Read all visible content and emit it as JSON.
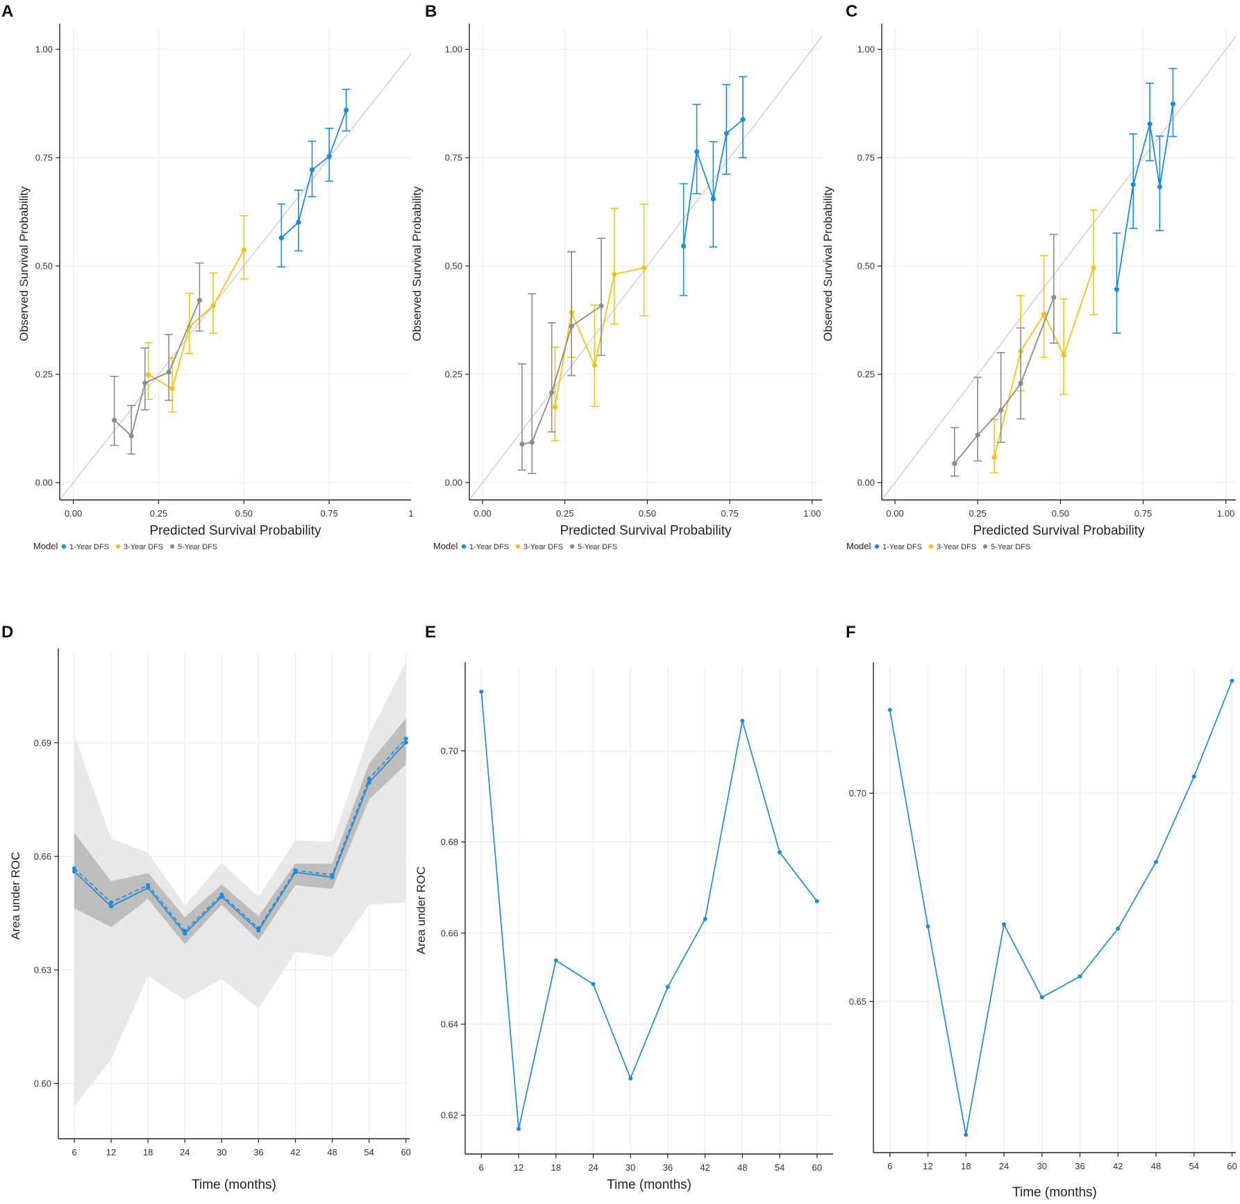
{
  "figure": {
    "colors": {
      "blue": "#1f8ad6",
      "yellow": "#f2c21b",
      "gray": "#8c8c8c",
      "grid": "#ececec",
      "diagonal": "#d2d2d2",
      "axis": "#222222",
      "band_outer": "#e8e8e8",
      "band_inner": "#bdbdbd"
    }
  },
  "chart_data": [
    {
      "panel": "A",
      "type": "scatter",
      "xlabel": "Predicted Survival Probability",
      "ylabel": "Observed Survival Probability",
      "xlim": [
        -0.04,
        0.99
      ],
      "ylim": [
        -0.04,
        1.05
      ],
      "xticks": [
        "0.00",
        "0.25",
        "0.50",
        "0.75"
      ],
      "xtick_values": [
        0,
        0.25,
        0.5,
        0.75
      ],
      "extra_xtick": {
        "value": 0.99,
        "label": "1"
      },
      "yticks": [
        "0.00",
        "0.25",
        "0.50",
        "0.75",
        "1.00"
      ],
      "ytick_values": [
        0,
        0.25,
        0.5,
        0.75,
        1.0
      ],
      "legend": {
        "title": "Model",
        "entries": [
          "1-Year DFS",
          "3-Year DFS",
          "5-Year DFS"
        ]
      },
      "series": [
        {
          "name": "1-Year DFS",
          "color_key": "blue",
          "points": [
            {
              "x": 0.61,
              "y": 0.565,
              "lo": 0.498,
              "hi": 0.643
            },
            {
              "x": 0.66,
              "y": 0.601,
              "lo": 0.535,
              "hi": 0.675
            },
            {
              "x": 0.7,
              "y": 0.722,
              "lo": 0.66,
              "hi": 0.788
            },
            {
              "x": 0.75,
              "y": 0.753,
              "lo": 0.696,
              "hi": 0.818
            },
            {
              "x": 0.8,
              "y": 0.86,
              "lo": 0.812,
              "hi": 0.908
            }
          ]
        },
        {
          "name": "3-Year DFS",
          "color_key": "yellow",
          "points": [
            {
              "x": 0.22,
              "y": 0.249,
              "lo": 0.192,
              "hi": 0.323
            },
            {
              "x": 0.29,
              "y": 0.217,
              "lo": 0.163,
              "hi": 0.288
            },
            {
              "x": 0.34,
              "y": 0.36,
              "lo": 0.298,
              "hi": 0.437
            },
            {
              "x": 0.41,
              "y": 0.408,
              "lo": 0.345,
              "hi": 0.484
            },
            {
              "x": 0.5,
              "y": 0.537,
              "lo": 0.47,
              "hi": 0.616
            }
          ]
        },
        {
          "name": "5-Year DFS",
          "color_key": "gray",
          "points": [
            {
              "x": 0.12,
              "y": 0.144,
              "lo": 0.086,
              "hi": 0.245
            },
            {
              "x": 0.17,
              "y": 0.108,
              "lo": 0.066,
              "hi": 0.178
            },
            {
              "x": 0.21,
              "y": 0.23,
              "lo": 0.168,
              "hi": 0.311
            },
            {
              "x": 0.28,
              "y": 0.255,
              "lo": 0.19,
              "hi": 0.342
            },
            {
              "x": 0.37,
              "y": 0.421,
              "lo": 0.35,
              "hi": 0.507
            }
          ]
        }
      ]
    },
    {
      "panel": "B",
      "type": "scatter",
      "xlabel": "Predicted Survival Probability",
      "ylabel": "Observed Survival Probability",
      "xlim": [
        -0.04,
        1.03
      ],
      "ylim": [
        -0.04,
        1.05
      ],
      "xticks": [
        "0.00",
        "0.25",
        "0.50",
        "0.75",
        "1.00"
      ],
      "xtick_values": [
        0,
        0.25,
        0.5,
        0.75,
        1.0
      ],
      "yticks": [
        "0.00",
        "0.25",
        "0.50",
        "0.75",
        "1.00"
      ],
      "ytick_values": [
        0,
        0.25,
        0.5,
        0.75,
        1.0
      ],
      "legend": {
        "title": "Model",
        "entries": [
          "1-Year DFS",
          "3-Year DFS",
          "5-Year DFS"
        ]
      },
      "series": [
        {
          "name": "1-Year DFS",
          "color_key": "blue",
          "points": [
            {
              "x": 0.61,
              "y": 0.546,
              "lo": 0.432,
              "hi": 0.69
            },
            {
              "x": 0.65,
              "y": 0.764,
              "lo": 0.667,
              "hi": 0.873
            },
            {
              "x": 0.7,
              "y": 0.655,
              "lo": 0.544,
              "hi": 0.787
            },
            {
              "x": 0.74,
              "y": 0.806,
              "lo": 0.712,
              "hi": 0.919
            },
            {
              "x": 0.79,
              "y": 0.838,
              "lo": 0.75,
              "hi": 0.937
            }
          ]
        },
        {
          "name": "3-Year DFS",
          "color_key": "yellow",
          "points": [
            {
              "x": 0.22,
              "y": 0.174,
              "lo": 0.097,
              "hi": 0.313
            },
            {
              "x": 0.27,
              "y": 0.393,
              "lo": 0.289,
              "hi": 0.533
            },
            {
              "x": 0.34,
              "y": 0.271,
              "lo": 0.176,
              "hi": 0.41
            },
            {
              "x": 0.4,
              "y": 0.481,
              "lo": 0.366,
              "hi": 0.633
            },
            {
              "x": 0.49,
              "y": 0.496,
              "lo": 0.385,
              "hi": 0.643
            }
          ]
        },
        {
          "name": "5-Year DFS",
          "color_key": "gray",
          "points": [
            {
              "x": 0.12,
              "y": 0.089,
              "lo": 0.029,
              "hi": 0.274
            },
            {
              "x": 0.15,
              "y": 0.093,
              "lo": 0.021,
              "hi": 0.436
            },
            {
              "x": 0.21,
              "y": 0.208,
              "lo": 0.117,
              "hi": 0.369
            },
            {
              "x": 0.27,
              "y": 0.361,
              "lo": 0.247,
              "hi": 0.533
            },
            {
              "x": 0.36,
              "y": 0.408,
              "lo": 0.294,
              "hi": 0.564
            }
          ]
        }
      ]
    },
    {
      "panel": "C",
      "type": "scatter",
      "xlabel": "Predicted Survival Probability",
      "ylabel": "Observed Survival Probability",
      "xlim": [
        -0.04,
        1.03
      ],
      "ylim": [
        -0.04,
        1.05
      ],
      "xticks": [
        "0.00",
        "0.25",
        "0.50",
        "0.75",
        "1.00"
      ],
      "xtick_values": [
        0,
        0.25,
        0.5,
        0.75,
        1.0
      ],
      "yticks": [
        "0.00",
        "0.25",
        "0.50",
        "0.75",
        "1.00"
      ],
      "ytick_values": [
        0,
        0.25,
        0.5,
        0.75,
        1.0
      ],
      "legend": {
        "title": "Model",
        "entries": [
          "1-Year DFS",
          "3-Year DFS",
          "5-Year DFS"
        ]
      },
      "series": [
        {
          "name": "1-Year DFS",
          "color_key": "blue",
          "points": [
            {
              "x": 0.67,
              "y": 0.446,
              "lo": 0.345,
              "hi": 0.576
            },
            {
              "x": 0.72,
              "y": 0.688,
              "lo": 0.587,
              "hi": 0.805
            },
            {
              "x": 0.77,
              "y": 0.828,
              "lo": 0.743,
              "hi": 0.922
            },
            {
              "x": 0.8,
              "y": 0.683,
              "lo": 0.582,
              "hi": 0.8
            },
            {
              "x": 0.84,
              "y": 0.874,
              "lo": 0.799,
              "hi": 0.956
            }
          ]
        },
        {
          "name": "3-Year DFS",
          "color_key": "yellow",
          "points": [
            {
              "x": 0.3,
              "y": 0.058,
              "lo": 0.023,
              "hi": 0.146
            },
            {
              "x": 0.38,
              "y": 0.303,
              "lo": 0.212,
              "hi": 0.432
            },
            {
              "x": 0.45,
              "y": 0.389,
              "lo": 0.289,
              "hi": 0.524
            },
            {
              "x": 0.51,
              "y": 0.294,
              "lo": 0.204,
              "hi": 0.424
            },
            {
              "x": 0.6,
              "y": 0.496,
              "lo": 0.388,
              "hi": 0.629
            }
          ]
        },
        {
          "name": "5-Year DFS",
          "color_key": "gray",
          "points": [
            {
              "x": 0.18,
              "y": 0.044,
              "lo": 0.015,
              "hi": 0.127
            },
            {
              "x": 0.25,
              "y": 0.11,
              "lo": 0.05,
              "hi": 0.243
            },
            {
              "x": 0.32,
              "y": 0.167,
              "lo": 0.093,
              "hi": 0.3
            },
            {
              "x": 0.38,
              "y": 0.229,
              "lo": 0.147,
              "hi": 0.357
            },
            {
              "x": 0.48,
              "y": 0.428,
              "lo": 0.322,
              "hi": 0.573
            }
          ]
        }
      ]
    },
    {
      "panel": "D",
      "type": "line",
      "xlabel": "Time (months)",
      "ylabel": "Area under ROC",
      "x": [
        6,
        12,
        18,
        24,
        30,
        36,
        42,
        48,
        54,
        60
      ],
      "xlim": [
        3.4,
        60.6
      ],
      "ylim": [
        0.5854,
        0.7138
      ],
      "xticks": [
        "6",
        "12",
        "18",
        "24",
        "30",
        "36",
        "42",
        "48",
        "54",
        "60"
      ],
      "yticks": [
        "0.60",
        "0.63",
        "0.66",
        "0.69"
      ],
      "ytick_values": [
        0.6,
        0.63,
        0.66,
        0.69
      ],
      "series": [
        {
          "name": "AUC",
          "style": "solid",
          "values": [
            0.656,
            0.6468,
            0.6517,
            0.6396,
            0.6493,
            0.6404,
            0.6558,
            0.6545,
            0.6795,
            0.6901
          ]
        },
        {
          "name": "AUC (dashed)",
          "style": "dashed",
          "values": [
            0.6568,
            0.6478,
            0.6524,
            0.6403,
            0.6499,
            0.641,
            0.6563,
            0.6551,
            0.6805,
            0.6911
          ]
        },
        {
          "name": "Inner band",
          "style": "band",
          "lower": [
            0.6463,
            0.6413,
            0.6487,
            0.6368,
            0.6472,
            0.6378,
            0.6524,
            0.6514,
            0.675,
            0.6843
          ],
          "upper": [
            0.6662,
            0.6534,
            0.6556,
            0.6439,
            0.6526,
            0.6442,
            0.6581,
            0.658,
            0.6845,
            0.6965
          ]
        },
        {
          "name": "Outer band",
          "style": "band",
          "lower": [
            0.594,
            0.6063,
            0.6284,
            0.6221,
            0.6276,
            0.6198,
            0.6348,
            0.6334,
            0.6472,
            0.6478
          ],
          "upper": [
            0.6919,
            0.6647,
            0.661,
            0.647,
            0.6583,
            0.6493,
            0.6643,
            0.6638,
            0.6922,
            0.7113
          ]
        }
      ]
    },
    {
      "panel": "E",
      "type": "line",
      "xlabel": "Time (months)",
      "ylabel": "Area under ROC",
      "x": [
        6,
        12,
        18,
        24,
        30,
        36,
        42,
        48,
        54,
        60
      ],
      "xlim": [
        3.4,
        62.6
      ],
      "ylim": [
        0.6115,
        0.7185
      ],
      "xticks": [
        "6",
        "12",
        "18",
        "24",
        "30",
        "36",
        "42",
        "48",
        "54",
        "60"
      ],
      "yticks": [
        "0.62",
        "0.64",
        "0.66",
        "0.68",
        "0.70"
      ],
      "ytick_values": [
        0.62,
        0.64,
        0.66,
        0.68,
        0.7
      ],
      "series": [
        {
          "name": "AUC",
          "style": "solid",
          "values": [
            0.713,
            0.617,
            0.654,
            0.6488,
            0.6281,
            0.6482,
            0.6631,
            0.7066,
            0.6777,
            0.667
          ]
        }
      ]
    },
    {
      "panel": "F",
      "type": "line",
      "xlabel": "Time (months)",
      "ylabel": "",
      "x": [
        6,
        12,
        18,
        24,
        30,
        36,
        42,
        48,
        54,
        60
      ],
      "xlim": [
        3.4,
        60.6
      ],
      "ylim": [
        0.6137,
        0.7304
      ],
      "xticks": [
        "6",
        "12",
        "18",
        "24",
        "30",
        "36",
        "42",
        "48",
        "54",
        "60"
      ],
      "yticks": [
        "0.65",
        "0.70"
      ],
      "ytick_values": [
        0.65,
        0.7
      ],
      "series": [
        {
          "name": "AUC",
          "style": "solid",
          "values": [
            0.72,
            0.668,
            0.618,
            0.6685,
            0.651,
            0.656,
            0.6675,
            0.6835,
            0.704,
            0.727
          ]
        }
      ]
    }
  ]
}
